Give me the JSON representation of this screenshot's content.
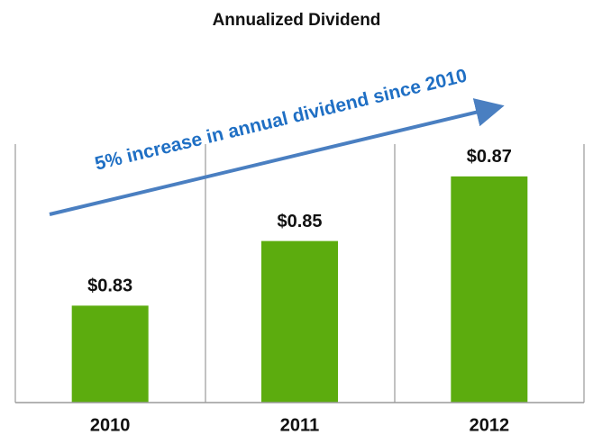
{
  "chart_data": {
    "type": "bar",
    "title": "Annualized Dividend",
    "annotation": "5% increase in annual dividend since 2010",
    "categories": [
      "2010",
      "2011",
      "2012"
    ],
    "values": [
      0.83,
      0.85,
      0.87
    ],
    "value_labels": [
      "$0.83",
      "$0.85",
      "$0.87"
    ],
    "color": "#5cac0e",
    "ylim": [
      0.8,
      0.88
    ]
  }
}
